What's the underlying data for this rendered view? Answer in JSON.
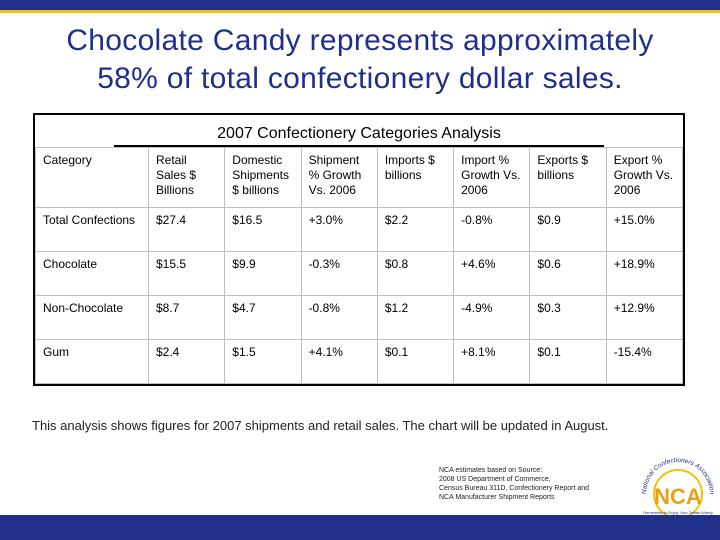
{
  "slide": {
    "title_line1": "Chocolate Candy represents approximately",
    "title_line2": "58% of total confectionery dollar sales."
  },
  "table": {
    "title": "2007 Confectionery Categories Analysis",
    "headers": [
      "Category",
      "Retail Sales $ Billions",
      "Domestic Shipments $ billions",
      "Shipment % Growth Vs. 2006",
      "Imports $ billions",
      "Import % Growth Vs. 2006",
      "Exports $ billions",
      "Export % Growth Vs. 2006"
    ],
    "rows": [
      [
        "Total Confections",
        "$27.4",
        "$16.5",
        "+3.0%",
        "$2.2",
        "-0.8%",
        "$0.9",
        "+15.0%"
      ],
      [
        "Chocolate",
        "$15.5",
        "$9.9",
        "-0.3%",
        "$0.8",
        "+4.6%",
        "$0.6",
        "+18.9%"
      ],
      [
        "Non-Chocolate",
        "$8.7",
        "$4.7",
        "-0.8%",
        "$1.2",
        "-4.9%",
        "$0.3",
        "+12.9%"
      ],
      [
        "Gum",
        "$2.4",
        "$1.5",
        "+4.1%",
        "$0.1",
        "+8.1%",
        "$0.1",
        "-15.4%"
      ]
    ]
  },
  "note": "This analysis shows figures for 2007 shipments and retail sales.  The chart will be updated in August.",
  "footnote": {
    "line1": "NCA estimates based on Source:",
    "line2": "2008 US Department of Commerce,",
    "line3": "Census Bureau 311D, Confectionery Report and",
    "line4": "NCA Manufacturer Shipment Reports"
  },
  "logo": {
    "text": "NCA",
    "arc_text": "National Confectioners Association",
    "tagline": "Remember to Enjoy Your Treats Wisely"
  },
  "colors": {
    "brand_blue": "#1f2f8a",
    "accent_yellow": "#f2c200",
    "logo_orange": "#e8a21a"
  }
}
